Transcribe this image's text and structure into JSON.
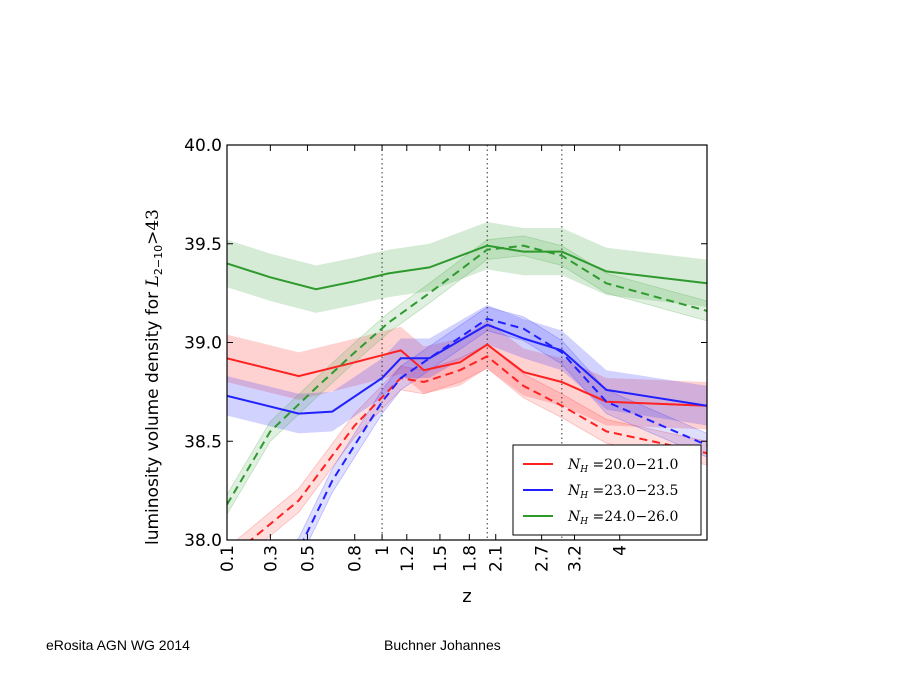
{
  "footer": {
    "left": "eRosita AGN WG 2014",
    "center": "Buchner Johannes"
  },
  "chart_data": {
    "type": "line",
    "xlabel": "z",
    "ylabel_text": "luminosity volume density for ",
    "ylabel_math": {
      "base": "L",
      "sub": "2−10",
      "sup": ">43"
    },
    "xscale": "log(1+z)",
    "xlim": [
      0.1,
      6.0
    ],
    "ylim": [
      38.0,
      40.0
    ],
    "x_ticks": [
      "0.1",
      "0.3",
      "0.5",
      "0.8",
      "1",
      "1.2",
      "1.5",
      "1.8",
      "2.1",
      "2.7",
      "3.2",
      "4"
    ],
    "y_ticks": [
      "38.0",
      "38.5",
      "39.0",
      "39.5",
      "40.0"
    ],
    "vlines": [
      1.0,
      2.0,
      3.0
    ],
    "grid": false,
    "legend_position": "bottom-right",
    "series": [
      {
        "name": "N_H =20.0−21.0",
        "legend_main": "N",
        "legend_sub": "H",
        "legend_rest": " =20.0−21.0",
        "color": "#ff2020",
        "solid": {
          "x": [
            0.1,
            0.45,
            0.8,
            1.15,
            1.35,
            1.7,
            2.0,
            2.45,
            3.0,
            3.75,
            6.0
          ],
          "y": [
            38.92,
            38.83,
            38.9,
            38.96,
            38.86,
            38.9,
            38.99,
            38.85,
            38.8,
            38.7,
            38.68
          ]
        },
        "dashed": {
          "x": [
            0.1,
            0.45,
            0.8,
            1.15,
            1.35,
            1.7,
            2.0,
            2.45,
            3.0,
            3.75,
            6.0
          ],
          "y": [
            37.9,
            38.2,
            38.58,
            38.82,
            38.8,
            38.86,
            38.93,
            38.78,
            38.68,
            38.55,
            38.44
          ]
        },
        "band_solid_halfwidth": 0.12,
        "band_dashed_halfwidth": 0.06
      },
      {
        "name": "N_H =23.0−23.5",
        "legend_main": "N",
        "legend_sub": "H",
        "legend_rest": " =23.0−23.5",
        "color": "#2020ff",
        "solid": {
          "x": [
            0.1,
            0.45,
            0.65,
            1.0,
            1.15,
            1.4,
            2.0,
            2.45,
            3.0,
            3.75,
            6.0
          ],
          "y": [
            38.73,
            38.64,
            38.65,
            38.82,
            38.92,
            38.92,
            39.09,
            39.02,
            38.96,
            38.76,
            38.68
          ]
        },
        "dashed": {
          "x": [
            0.1,
            0.45,
            0.65,
            1.0,
            1.15,
            1.4,
            2.0,
            2.45,
            3.0,
            3.75,
            6.0
          ],
          "y": [
            37.6,
            37.95,
            38.3,
            38.7,
            38.82,
            38.92,
            39.12,
            39.07,
            38.95,
            38.7,
            38.48
          ]
        },
        "band_solid_halfwidth": 0.1,
        "band_dashed_halfwidth": 0.06
      },
      {
        "name": "N_H =24.0−26.0",
        "legend_main": "N",
        "legend_sub": "H",
        "legend_rest": " =24.0−26.0",
        "color": "#2e9a2e",
        "solid": {
          "x": [
            0.1,
            0.3,
            0.55,
            0.8,
            1.05,
            1.4,
            2.0,
            2.45,
            3.0,
            3.75,
            6.0
          ],
          "y": [
            39.4,
            39.33,
            39.27,
            39.31,
            39.35,
            39.38,
            39.49,
            39.46,
            39.46,
            39.36,
            39.3
          ]
        },
        "dashed": {
          "x": [
            0.1,
            0.3,
            0.55,
            0.8,
            1.05,
            1.4,
            2.0,
            2.45,
            3.0,
            3.75,
            6.0
          ],
          "y": [
            38.18,
            38.55,
            38.77,
            38.95,
            39.1,
            39.25,
            39.47,
            39.49,
            39.44,
            39.3,
            39.16
          ]
        },
        "band_solid_halfwidth": 0.12,
        "band_dashed_halfwidth": 0.05
      }
    ]
  }
}
